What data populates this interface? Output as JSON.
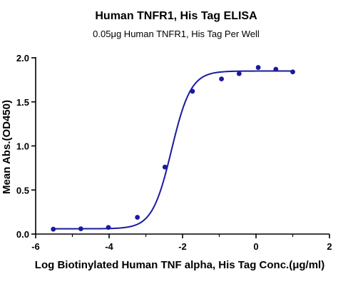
{
  "chart_data": {
    "type": "scatter",
    "title": "Human TNFR1, His Tag ELISA",
    "subtitle": "0.05μg Human TNFR1, His Tag Per Well",
    "xlabel": "Log Biotinylated Human TNF alpha, His Tag Conc.(μg/ml)",
    "ylabel": "Mean Abs.(OD450)",
    "xlim": [
      -6,
      2
    ],
    "ylim": [
      0,
      2.0
    ],
    "xticks": [
      -6,
      -4,
      -2,
      0,
      2
    ],
    "xtick_labels": [
      "-6",
      "-4",
      "-2",
      "0",
      "2"
    ],
    "yticks": [
      0,
      0.5,
      1.0,
      1.5,
      2.0
    ],
    "ytick_labels": [
      "0.0",
      "0.5",
      "1.0",
      "1.5",
      "2.0"
    ],
    "grid": false,
    "series": [
      {
        "color": "#1a1a9e",
        "x": [
          -5.52,
          -4.77,
          -4.02,
          -3.23,
          -2.48,
          -1.73,
          -0.94,
          -0.46,
          0.06,
          0.54,
          1.0
        ],
        "y": [
          0.055,
          0.06,
          0.075,
          0.19,
          0.76,
          1.62,
          1.76,
          1.82,
          1.89,
          1.87,
          1.84
        ]
      }
    ],
    "fit_curve": {
      "color": "#1a1a9e",
      "model": "4PL",
      "bottom": 0.06,
      "top": 1.85,
      "log_ec50": -2.3,
      "hill_slope": 1.65,
      "x_range": [
        -5.52,
        1.0
      ]
    }
  }
}
